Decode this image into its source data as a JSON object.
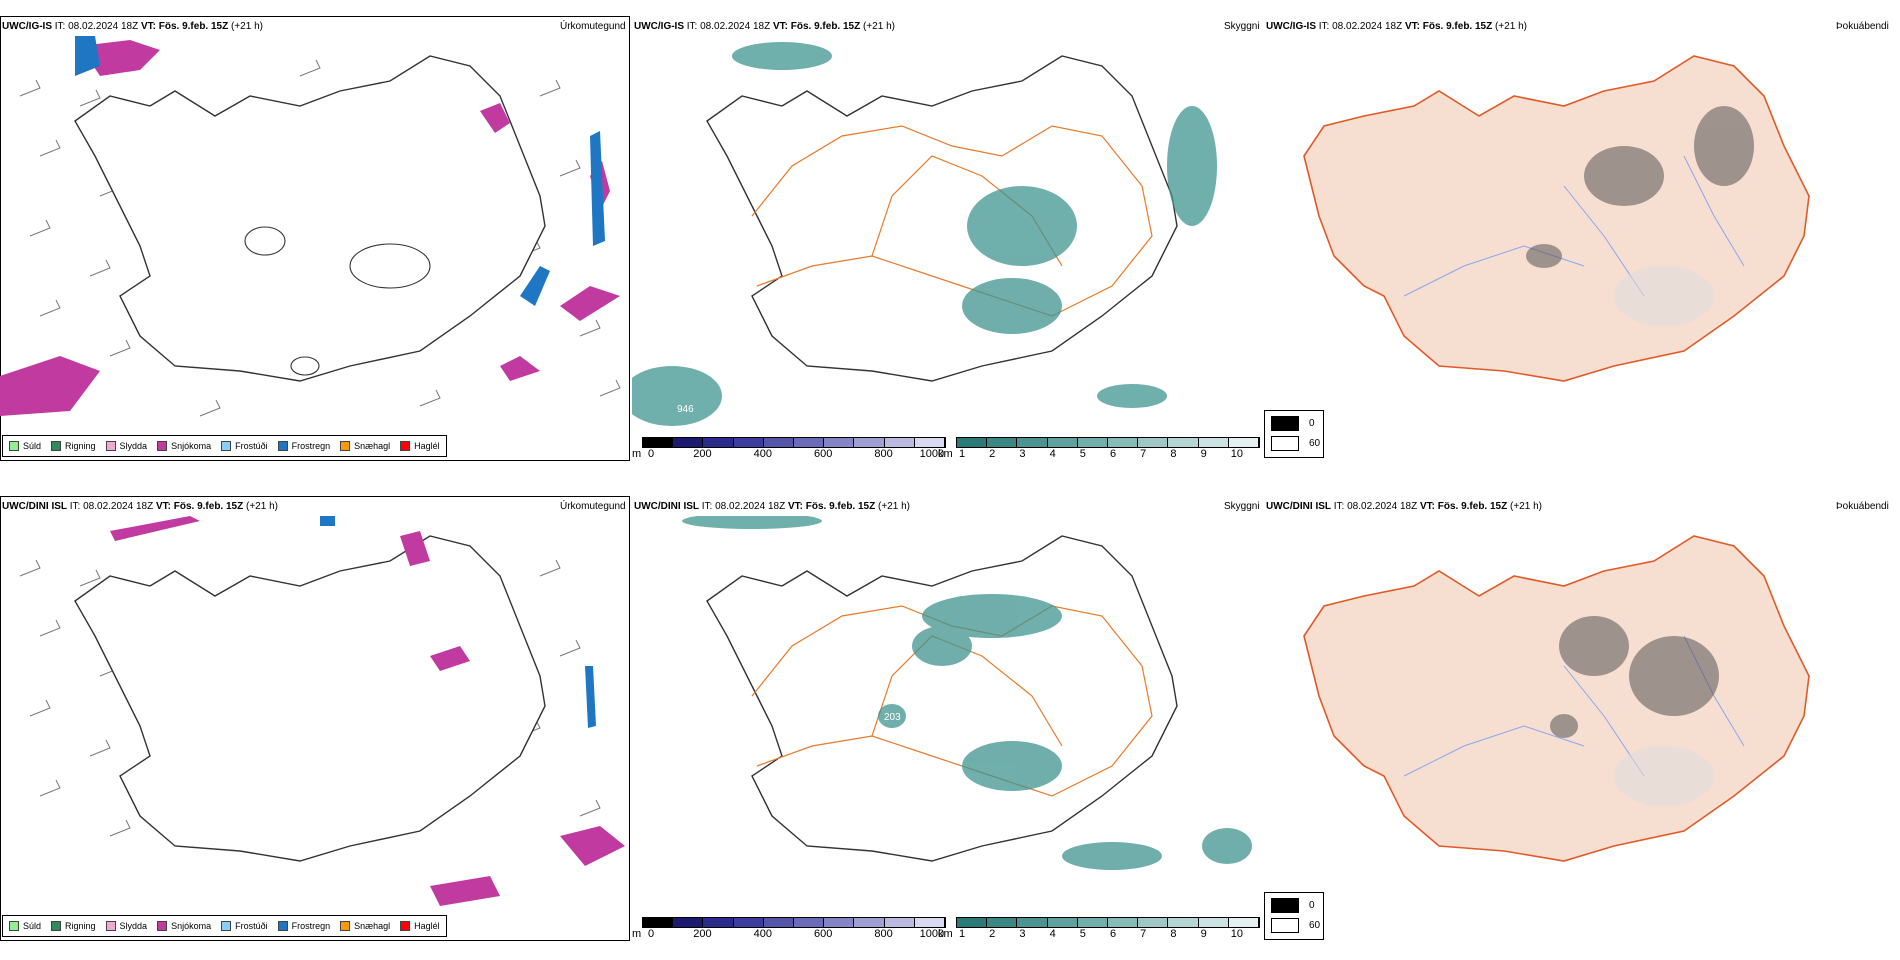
{
  "rows": [
    {
      "model": "UWC/IG-IS",
      "it_label": "IT:",
      "it_value": "08.02.2024 18Z",
      "vt_label": "VT:",
      "vt_value": "Fös. 9.feb. 15Z",
      "lead": "(+21 h)"
    },
    {
      "model": "UWC/DINI ISL",
      "it_label": "IT:",
      "it_value": "08.02.2024 18Z",
      "vt_label": "VT:",
      "vt_value": "Fös. 9.feb. 15Z",
      "lead": "(+21 h)"
    }
  ],
  "fields": {
    "precip_type": "Úrkomutegund",
    "visibility": "Skyggni",
    "cloud_base": "Þokuábendi"
  },
  "precip_legend": [
    {
      "label": "Súld",
      "color": "#90ee90"
    },
    {
      "label": "Rigning",
      "color": "#2e8b57"
    },
    {
      "label": "Slydda",
      "color": "#f4a6d7"
    },
    {
      "label": "Snjókoma",
      "color": "#c03aa0"
    },
    {
      "label": "Frostúði",
      "color": "#87cefa"
    },
    {
      "label": "Frostregn",
      "color": "#1f77c4"
    },
    {
      "label": "Snæhagl",
      "color": "#ff9900"
    },
    {
      "label": "Haglél",
      "color": "#ff0000"
    }
  ],
  "terrain_bar": {
    "unit": "m",
    "ticks": [
      "0",
      "200",
      "400",
      "600",
      "800",
      "1000"
    ],
    "colors": [
      "#000000",
      "#1a1a6e",
      "#2b2b8c",
      "#3d3d9e",
      "#5555aa",
      "#6b6bb8",
      "#8585c6",
      "#9f9fd4",
      "#bbbbe2",
      "#d8d8f0"
    ]
  },
  "visibility_bar": {
    "unit": "km",
    "ticks": [
      "1",
      "2",
      "3",
      "4",
      "5",
      "6",
      "7",
      "8",
      "9",
      "10"
    ],
    "colors": [
      "#2b7a78",
      "#3a8784",
      "#4b9491",
      "#5ea19e",
      "#72aeab",
      "#87bbb8",
      "#9dc8c5",
      "#b3d5d3",
      "#cae2e1",
      "#e2f0ef"
    ]
  },
  "cloud_key": {
    "dark_label": "0",
    "light_label": "60"
  },
  "map_labels": {
    "top_terrain_mark": "946",
    "bottom_elev_mark": "203"
  },
  "colors": {
    "snow": "#c03aa0",
    "freezing_rain": "#1f77c4",
    "fog_teal": "#3f9490",
    "roads": "#e87a2a",
    "land": "#f6dfd0",
    "rivers": "#8aa6f0"
  }
}
